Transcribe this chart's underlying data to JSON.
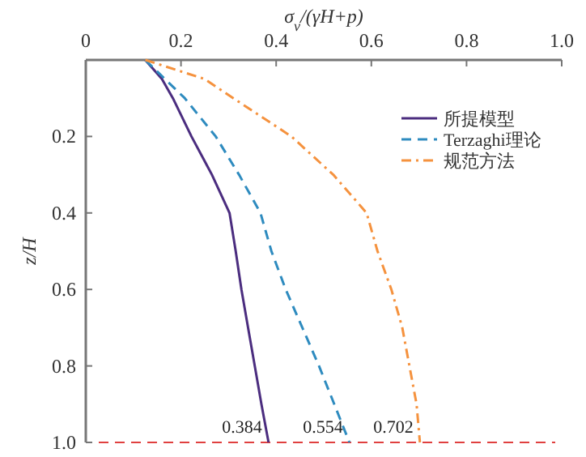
{
  "chart_data": {
    "type": "line",
    "xlabel": "σ$_{v}$/(γH+p)",
    "ylabel": "z/H",
    "xlim": [
      0,
      1
    ],
    "ylim": [
      1,
      0
    ],
    "xticks": [
      0,
      0.2,
      0.4,
      0.6,
      0.8,
      {
        "value": 1,
        "label": "1.0"
      }
    ],
    "yticks": [
      0.2,
      0.4,
      0.6,
      0.8,
      {
        "value": 1,
        "label": "1.0"
      }
    ],
    "legend": "top right",
    "series": [
      {
        "name": "所提模型",
        "color": "#4b2d7f",
        "line_style": "solid",
        "x": [
          0.125,
          0.16,
          0.183,
          0.222,
          0.265,
          0.302,
          0.315,
          0.327,
          0.341,
          0.355,
          0.369,
          0.384
        ],
        "values": [
          0,
          0.05,
          0.1,
          0.2,
          0.3,
          0.4,
          0.5,
          0.6,
          0.7,
          0.8,
          0.9,
          1
        ]
      },
      {
        "name": "Terzaghi理论",
        "color": "#2e8bbf",
        "line_style": "dashed",
        "x": [
          0.125,
          0.208,
          0.273,
          0.322,
          0.367,
          0.39,
          0.42,
          0.455,
          0.49,
          0.522,
          0.554
        ],
        "values": [
          0,
          0.1,
          0.2,
          0.3,
          0.4,
          0.5,
          0.6,
          0.7,
          0.8,
          0.9,
          1
        ]
      },
      {
        "name": "规范方法",
        "color": "#f5923e",
        "line_style": "dashdot",
        "x": [
          0.125,
          0.25,
          0.31,
          0.432,
          0.52,
          0.59,
          0.613,
          0.642,
          0.665,
          0.68,
          0.695,
          0.702
        ],
        "values": [
          0,
          0.05,
          0.1,
          0.2,
          0.3,
          0.4,
          0.5,
          0.6,
          0.7,
          0.8,
          0.9,
          1
        ]
      }
    ],
    "ref_lines": [
      {
        "axis": "y",
        "value": 1,
        "color": "#e0403f",
        "line_style": "dashed"
      }
    ],
    "annotations": [
      {
        "text": "0.384",
        "x": 0.384,
        "y": 1
      },
      {
        "text": "0.554",
        "x": 0.554,
        "y": 1
      },
      {
        "text": "0.702",
        "x": 0.702,
        "y": 1
      }
    ]
  }
}
